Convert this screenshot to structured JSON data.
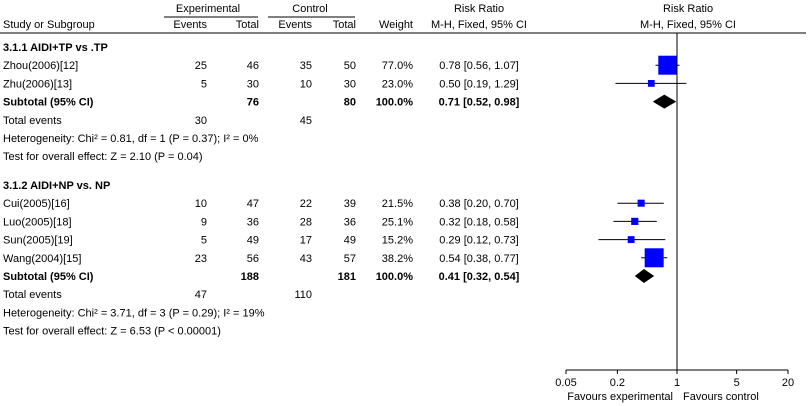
{
  "header": {
    "group1": "Experimental",
    "group2": "Control",
    "col_study": "Study or Subgroup",
    "col_events1": "Events",
    "col_total1": "Total",
    "col_events2": "Events",
    "col_total2": "Total",
    "col_weight": "Weight",
    "col_rr": "Risk Ratio",
    "col_rr_sub": "M-H, Fixed, 95% CI",
    "col_plot": "Risk Ratio",
    "col_plot_sub": "M-H, Fixed, 95% CI"
  },
  "colors": {
    "marker": "#0000ff",
    "line": "#000000"
  },
  "chart_data": {
    "type": "forest",
    "x_scale": "log",
    "xlim": [
      0.05,
      20
    ],
    "ticks": [
      {
        "v": 0.05,
        "label": "0.05"
      },
      {
        "v": 0.2,
        "label": "0.2"
      },
      {
        "v": 1,
        "label": "1"
      },
      {
        "v": 5,
        "label": "5"
      },
      {
        "v": 20,
        "label": "20"
      }
    ],
    "favours_left": "Favours experimental",
    "favours_right": "Favours control",
    "subgroups": [
      {
        "title": "3.1.1 AIDI+TP vs .TP",
        "studies": [
          {
            "name": "Zhou(2006)[12]",
            "e1": "25",
            "t1": "46",
            "e2": "35",
            "t2": "50",
            "weight": "77.0%",
            "ci": "0.78 [0.56, 1.07]",
            "rr": 0.78,
            "lo": 0.56,
            "hi": 1.07,
            "w": 77.0
          },
          {
            "name": "Zhu(2006)[13]",
            "e1": "5",
            "t1": "30",
            "e2": "10",
            "t2": "30",
            "weight": "23.0%",
            "ci": "0.50 [0.19, 1.29]",
            "rr": 0.5,
            "lo": 0.19,
            "hi": 1.29,
            "w": 23.0
          }
        ],
        "subtotal": {
          "label": "Subtotal (95% CI)",
          "t1": "76",
          "t2": "80",
          "weight": "100.0%",
          "ci": "0.71 [0.52, 0.98]",
          "rr": 0.71,
          "lo": 0.52,
          "hi": 0.98
        },
        "total_events": {
          "label": "Total events",
          "e1": "30",
          "e2": "45"
        },
        "heterogeneity": "Heterogeneity: Chi² = 0.81, df = 1 (P = 0.37); I² = 0%",
        "overall": "Test for overall effect: Z = 2.10 (P = 0.04)"
      },
      {
        "title": "3.1.2 AIDI+NP vs. NP",
        "studies": [
          {
            "name": "Cui(2005)[16]",
            "e1": "10",
            "t1": "47",
            "e2": "22",
            "t2": "39",
            "weight": "21.5%",
            "ci": "0.38 [0.20, 0.70]",
            "rr": 0.38,
            "lo": 0.2,
            "hi": 0.7,
            "w": 21.5
          },
          {
            "name": "Luo(2005)[18]",
            "e1": "9",
            "t1": "36",
            "e2": "28",
            "t2": "36",
            "weight": "25.1%",
            "ci": "0.32 [0.18, 0.58]",
            "rr": 0.32,
            "lo": 0.18,
            "hi": 0.58,
            "w": 25.1
          },
          {
            "name": "Sun(2005)[19]",
            "e1": "5",
            "t1": "49",
            "e2": "17",
            "t2": "49",
            "weight": "15.2%",
            "ci": "0.29 [0.12, 0.73]",
            "rr": 0.29,
            "lo": 0.12,
            "hi": 0.73,
            "w": 15.2
          },
          {
            "name": "Wang(2004)[15]",
            "e1": "23",
            "t1": "56",
            "e2": "43",
            "t2": "57",
            "weight": "38.2%",
            "ci": "0.54 [0.38, 0.77]",
            "rr": 0.54,
            "lo": 0.38,
            "hi": 0.77,
            "w": 38.2
          }
        ],
        "subtotal": {
          "label": "Subtotal (95% CI)",
          "t1": "188",
          "t2": "181",
          "weight": "100.0%",
          "ci": "0.41 [0.32, 0.54]",
          "rr": 0.41,
          "lo": 0.32,
          "hi": 0.54
        },
        "total_events": {
          "label": "Total events",
          "e1": "47",
          "e2": "110"
        },
        "heterogeneity": "Heterogeneity: Chi² = 3.71, df = 3 (P = 0.29); I² = 19%",
        "overall": "Test for overall effect: Z = 6.53 (P < 0.00001)"
      }
    ]
  }
}
